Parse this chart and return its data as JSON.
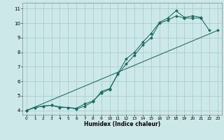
{
  "xlabel": "Humidex (Indice chaleur)",
  "bg_color": "#cce8e8",
  "grid_color": "#aacece",
  "line_color": "#1a6b5e",
  "xlim": [
    -0.5,
    23.5
  ],
  "ylim": [
    3.7,
    11.4
  ],
  "xtick_labels": [
    "0",
    "1",
    "2",
    "3",
    "4",
    "5",
    "6",
    "7",
    "8",
    "9",
    "10",
    "11",
    "12",
    "13",
    "14",
    "15",
    "16",
    "17",
    "18",
    "19",
    "20",
    "21",
    "22",
    "23"
  ],
  "ytick_labels": [
    "4",
    "5",
    "6",
    "7",
    "8",
    "9",
    "10",
    "11"
  ],
  "yticks": [
    4,
    5,
    6,
    7,
    8,
    9,
    10,
    11
  ],
  "line1_x": [
    0,
    1,
    2,
    3,
    4,
    5,
    6,
    7,
    8,
    9,
    10,
    11,
    12,
    13,
    14,
    15,
    16,
    17,
    18,
    19,
    20,
    21,
    22
  ],
  "line1_y": [
    4.0,
    4.2,
    4.3,
    4.35,
    4.2,
    4.2,
    4.1,
    4.3,
    4.6,
    5.3,
    5.5,
    6.5,
    7.2,
    7.8,
    8.5,
    9.0,
    10.0,
    10.2,
    10.5,
    10.35,
    10.35,
    10.35,
    9.5
  ],
  "line2_x": [
    0,
    1,
    2,
    3,
    4,
    5,
    6,
    7,
    8,
    9,
    10,
    11,
    12,
    13,
    14,
    15,
    16,
    17,
    18,
    19,
    20,
    21
  ],
  "line2_y": [
    4.0,
    4.2,
    4.3,
    4.35,
    4.25,
    4.2,
    4.15,
    4.45,
    4.65,
    5.2,
    5.45,
    6.55,
    7.55,
    8.0,
    8.7,
    9.3,
    10.05,
    10.35,
    10.85,
    10.4,
    10.5,
    10.4
  ],
  "line3_x": [
    0,
    23
  ],
  "line3_y": [
    4.0,
    9.5
  ]
}
